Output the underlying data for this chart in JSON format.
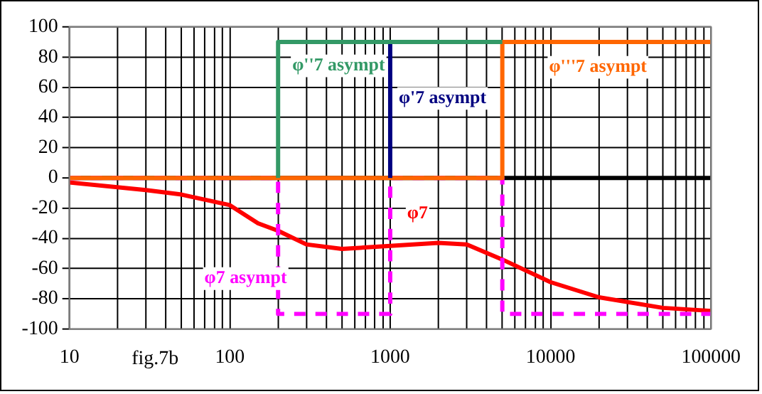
{
  "chart_data": {
    "type": "line",
    "log": "x",
    "grid": true,
    "legend": false,
    "marker": "none",
    "xlim": [
      10,
      100000
    ],
    "ylim": [
      -100,
      100
    ],
    "xticks": [
      10,
      {
        "value": 20,
        "label": null
      },
      {
        "value": 30,
        "label": null
      },
      {
        "value": 40,
        "label": null
      },
      {
        "value": 50,
        "label": null
      },
      {
        "value": 60,
        "label": null
      },
      {
        "value": 70,
        "label": null
      },
      {
        "value": 80,
        "label": null
      },
      {
        "value": 90,
        "label": null
      },
      100,
      {
        "value": 200,
        "label": null
      },
      {
        "value": 300,
        "label": null
      },
      {
        "value": 400,
        "label": null
      },
      {
        "value": 500,
        "label": null
      },
      {
        "value": 600,
        "label": null
      },
      {
        "value": 700,
        "label": null
      },
      {
        "value": 800,
        "label": null
      },
      {
        "value": 900,
        "label": null
      },
      1000,
      {
        "value": 2000,
        "label": null
      },
      {
        "value": 3000,
        "label": null
      },
      {
        "value": 4000,
        "label": null
      },
      {
        "value": 5000,
        "label": null
      },
      {
        "value": 6000,
        "label": null
      },
      {
        "value": 7000,
        "label": null
      },
      {
        "value": 8000,
        "label": null
      },
      {
        "value": 9000,
        "label": null
      },
      10000,
      {
        "value": 20000,
        "label": null
      },
      {
        "value": 30000,
        "label": null
      },
      {
        "value": 40000,
        "label": null
      },
      {
        "value": 50000,
        "label": null
      },
      {
        "value": 60000,
        "label": null
      },
      {
        "value": 70000,
        "label": null
      },
      {
        "value": 80000,
        "label": null
      },
      {
        "value": 90000,
        "label": null
      },
      100000
    ],
    "yticks": [
      -100,
      -80,
      -60,
      -40,
      -20,
      0,
      20,
      40,
      60,
      80,
      100
    ],
    "ref_lines": [
      {
        "axis": "y",
        "value": 0,
        "color": "#000000"
      }
    ],
    "series": [
      {
        "name": "φ''7 asympt",
        "color": "#339966",
        "line_style": "solid",
        "x": [
          200,
          200,
          5000
        ],
        "values": [
          0,
          90,
          90
        ]
      },
      {
        "name": "φ'7 asympt",
        "color": "#000080",
        "line_style": "solid",
        "x": [
          1000,
          1000
        ],
        "values": [
          0,
          90
        ]
      },
      {
        "name": "φ'''7 asympt",
        "color": "#ff6600",
        "line_style": "solid",
        "x": [
          10,
          5000,
          5000,
          100000
        ],
        "values": [
          0,
          0,
          90,
          90
        ]
      },
      {
        "name": "φ7 asympt",
        "color": "#ff00ff",
        "line_style": "dashed",
        "x": [
          10,
          200,
          200,
          1000,
          1000,
          5000,
          5000,
          100000
        ],
        "values": [
          0,
          0,
          -90,
          -90,
          0,
          0,
          -90,
          -90
        ]
      },
      {
        "name": "φ7",
        "color": "#ff0000",
        "line_style": "solid",
        "x": [
          10,
          30,
          50,
          100,
          150,
          200,
          300,
          500,
          1000,
          2000,
          3000,
          5000,
          10000,
          20000,
          50000,
          100000
        ],
        "values": [
          -3,
          -8,
          -11,
          -18,
          -30,
          -35,
          -44,
          -47,
          -45,
          -43,
          -44,
          -54,
          -69,
          -79,
          -86,
          -88
        ]
      }
    ],
    "annotations": [
      "fig.7b"
    ]
  }
}
